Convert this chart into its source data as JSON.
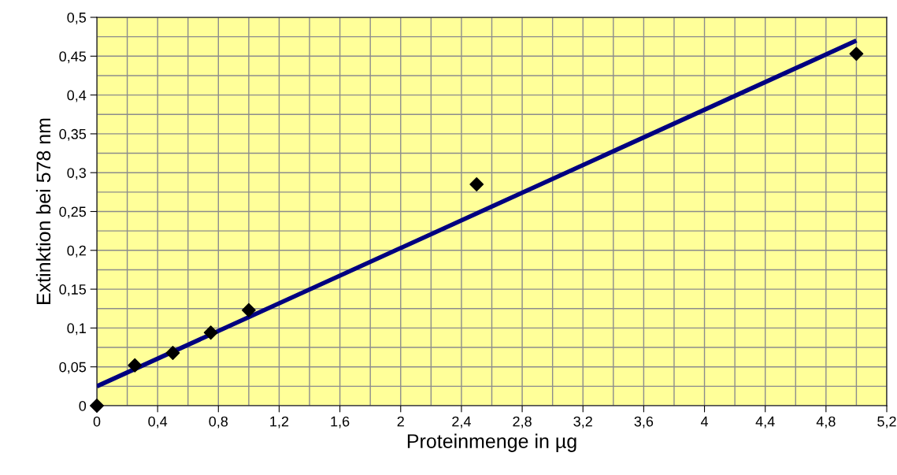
{
  "chart_data": {
    "type": "scatter",
    "xlabel": "Proteinmenge in µg",
    "ylabel": "Extinktion bei 578 nm",
    "grid": true,
    "legend": false,
    "series": [
      {
        "marker": "diamond",
        "color": "#000000",
        "x": [
          0,
          0.25,
          0.5,
          0.75,
          1,
          2.5,
          5
        ],
        "values": [
          0,
          0.052,
          0.068,
          0.094,
          0.123,
          0.285,
          0.453
        ]
      },
      {
        "type": "line",
        "marker": "none",
        "color": "#000080",
        "x": [
          0,
          5
        ],
        "values": [
          0.025,
          0.47
        ]
      }
    ],
    "xlim": [
      0,
      5.2
    ],
    "ylim": [
      0,
      0.5
    ],
    "xticks": [
      0,
      {
        "value": 0.4,
        "label": "0,4"
      },
      {
        "value": 0.8,
        "label": "0,8"
      },
      {
        "value": 1.2,
        "label": "1,2"
      },
      {
        "value": 1.6,
        "label": "1,6"
      },
      2,
      {
        "value": 2.4,
        "label": "2,4"
      },
      {
        "value": 2.8,
        "label": "2,8"
      },
      {
        "value": 3.2,
        "label": "3,2"
      },
      {
        "value": 3.6,
        "label": "3,6"
      },
      4,
      {
        "value": 4.4,
        "label": "4,4"
      },
      {
        "value": 4.8,
        "label": "4,8"
      },
      {
        "value": 5.2,
        "label": "5,2"
      }
    ],
    "yticks": [
      0,
      {
        "value": 0.05,
        "label": "0,05"
      },
      {
        "value": 0.1,
        "label": "0,1"
      },
      {
        "value": 0.15,
        "label": "0,15"
      },
      {
        "value": 0.2,
        "label": "0,2"
      },
      {
        "value": 0.25,
        "label": "0,25"
      },
      {
        "value": 0.3,
        "label": "0,3"
      },
      {
        "value": 0.35,
        "label": "0,35"
      },
      {
        "value": 0.4,
        "label": "0,4"
      },
      {
        "value": 0.45,
        "label": "0,45"
      },
      {
        "value": 0.5,
        "label": "0,5"
      }
    ]
  }
}
